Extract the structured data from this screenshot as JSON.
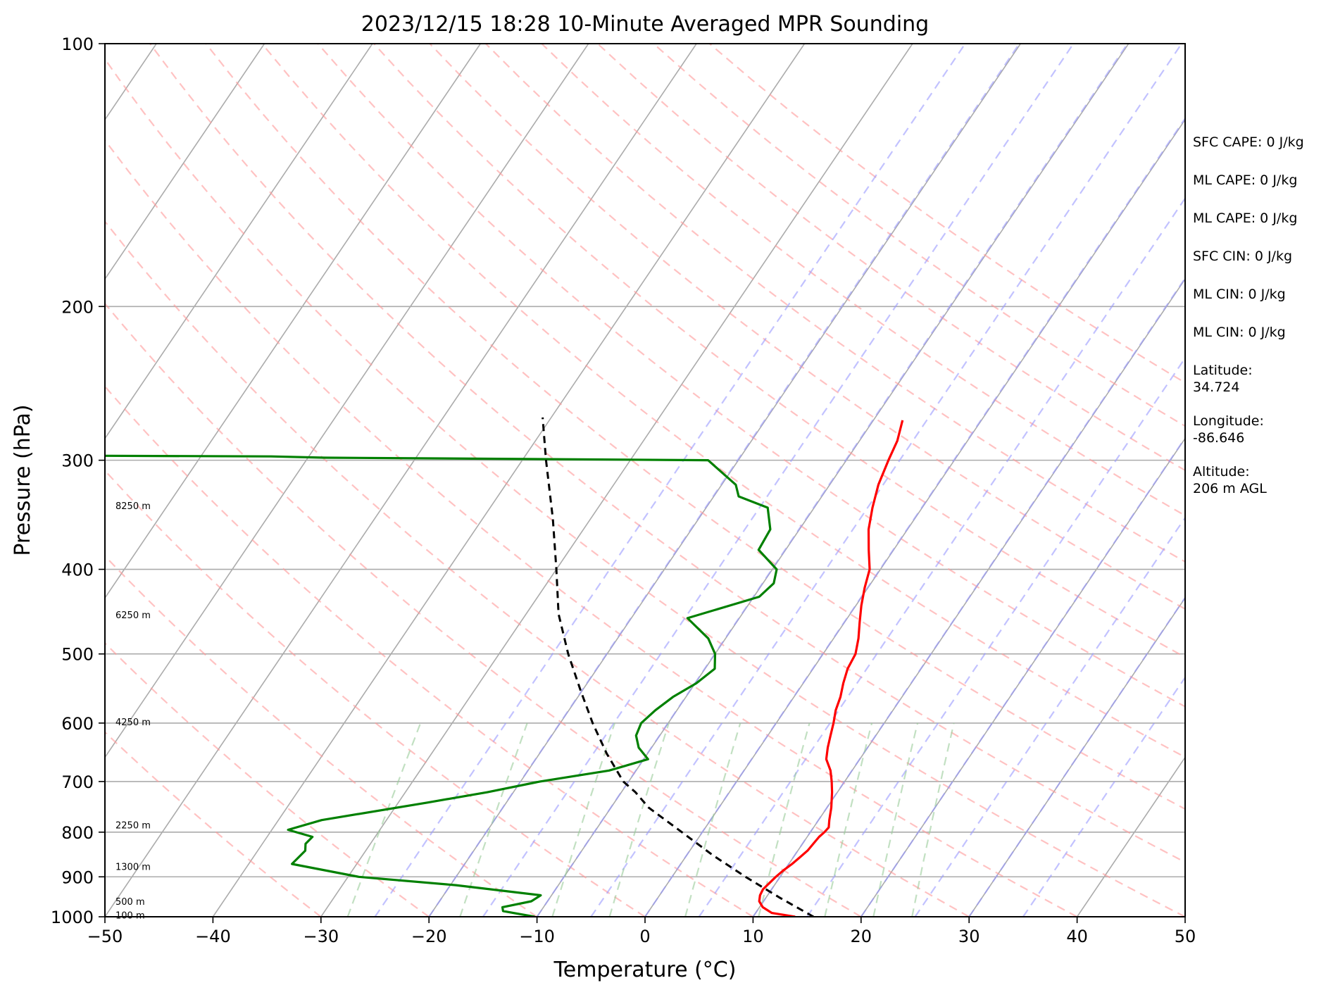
{
  "chart_data": {
    "type": "skew-t",
    "title": "2023/12/15 18:28 10-Minute Averaged MPR Sounding",
    "xlabel": "Temperature (°C)",
    "ylabel": "Pressure (hPa)",
    "xlim": [
      -50,
      50
    ],
    "ylim": [
      1000,
      100
    ],
    "y_scale": "log",
    "x_ticks": [
      "−50",
      "−40",
      "−30",
      "−20",
      "−10",
      "0",
      "10",
      "20",
      "30",
      "40",
      "50"
    ],
    "x_tick_values": [
      -50,
      -40,
      -30,
      -20,
      -10,
      0,
      10,
      20,
      30,
      40,
      50
    ],
    "y_ticks": [
      "1000",
      "900",
      "800",
      "700",
      "600",
      "500",
      "400",
      "300",
      "200",
      "100"
    ],
    "y_tick_values": [
      1000,
      900,
      800,
      700,
      600,
      500,
      400,
      300,
      200,
      100
    ],
    "grid": true,
    "series": [
      {
        "role": "temperature",
        "color": "#ff0000",
        "points": [
          [
            1000,
            13.9
          ],
          [
            990,
            11.5
          ],
          [
            975,
            10.3
          ],
          [
            960,
            9.6
          ],
          [
            945,
            9.3
          ],
          [
            930,
            9.2
          ],
          [
            915,
            9.4
          ],
          [
            900,
            9.6
          ],
          [
            885,
            9.9
          ],
          [
            870,
            10.3
          ],
          [
            855,
            10.6
          ],
          [
            840,
            10.9
          ],
          [
            825,
            11.0
          ],
          [
            810,
            11.1
          ],
          [
            800,
            11.3
          ],
          [
            790,
            11.4
          ],
          [
            775,
            11.0
          ],
          [
            750,
            10.4
          ],
          [
            720,
            9.5
          ],
          [
            700,
            8.8
          ],
          [
            680,
            8.0
          ],
          [
            660,
            6.9
          ],
          [
            640,
            6.3
          ],
          [
            620,
            5.8
          ],
          [
            600,
            5.3
          ],
          [
            580,
            4.7
          ],
          [
            560,
            4.3
          ],
          [
            540,
            3.7
          ],
          [
            520,
            3.2
          ],
          [
            500,
            3.0
          ],
          [
            480,
            2.3
          ],
          [
            460,
            1.4
          ],
          [
            440,
            0.5
          ],
          [
            420,
            -0.3
          ],
          [
            400,
            -1.0
          ],
          [
            380,
            -2.3
          ],
          [
            360,
            -3.6
          ],
          [
            340,
            -4.6
          ],
          [
            320,
            -5.5
          ],
          [
            300,
            -6.1
          ],
          [
            285,
            -6.5
          ],
          [
            270,
            -7.3
          ]
        ]
      },
      {
        "role": "dewpoint",
        "color": "#008000",
        "points": [
          [
            1000,
            -10.2
          ],
          [
            985,
            -13.5
          ],
          [
            975,
            -13.8
          ],
          [
            960,
            -11.5
          ],
          [
            945,
            -11.0
          ],
          [
            920,
            -19.5
          ],
          [
            900,
            -29.0
          ],
          [
            870,
            -36.0
          ],
          [
            840,
            -35.6
          ],
          [
            825,
            -36.0
          ],
          [
            810,
            -35.8
          ],
          [
            795,
            -38.5
          ],
          [
            775,
            -36.0
          ],
          [
            740,
            -27.3
          ],
          [
            720,
            -22.4
          ],
          [
            700,
            -18.2
          ],
          [
            680,
            -12.5
          ],
          [
            660,
            -9.6
          ],
          [
            640,
            -11.2
          ],
          [
            620,
            -12.2
          ],
          [
            600,
            -12.5
          ],
          [
            580,
            -12.0
          ],
          [
            560,
            -11.2
          ],
          [
            540,
            -9.9
          ],
          [
            520,
            -9.1
          ],
          [
            500,
            -10.0
          ],
          [
            480,
            -11.6
          ],
          [
            455,
            -14.8
          ],
          [
            430,
            -9.5
          ],
          [
            415,
            -9.0
          ],
          [
            400,
            -9.6
          ],
          [
            380,
            -12.5
          ],
          [
            360,
            -12.7
          ],
          [
            340,
            -14.3
          ],
          [
            330,
            -17.7
          ],
          [
            320,
            -18.7
          ],
          [
            300,
            -22.8
          ],
          [
            298,
            -58.5
          ],
          [
            297,
            -63.5
          ],
          [
            296,
            -95.0
          ]
        ]
      },
      {
        "role": "parcel",
        "color": "#000000",
        "style": "dashed",
        "points": [
          [
            1000,
            15.6
          ],
          [
            950,
            11.2
          ],
          [
            900,
            6.8
          ],
          [
            850,
            2.4
          ],
          [
            800,
            -1.9
          ],
          [
            750,
            -6.5
          ],
          [
            720,
            -8.7
          ],
          [
            700,
            -10.5
          ],
          [
            650,
            -13.8
          ],
          [
            600,
            -17.0
          ],
          [
            550,
            -20.2
          ],
          [
            500,
            -23.6
          ],
          [
            450,
            -27.0
          ],
          [
            400,
            -30.0
          ],
          [
            350,
            -33.5
          ],
          [
            300,
            -37.8
          ],
          [
            268,
            -40.8
          ]
        ]
      }
    ],
    "height_labels": [
      {
        "pressure": 995,
        "text": "100 m"
      },
      {
        "pressure": 960,
        "text": "500 m"
      },
      {
        "pressure": 876,
        "text": "1300 m"
      },
      {
        "pressure": 785,
        "text": "2250 m"
      },
      {
        "pressure": 598,
        "text": "4250 m"
      },
      {
        "pressure": 451,
        "text": "6250 m"
      },
      {
        "pressure": 338,
        "text": "8250 m"
      }
    ],
    "reference_lines": {
      "isobars": [
        1000,
        900,
        800,
        700,
        600,
        500,
        400,
        300,
        200,
        100
      ],
      "isotherms": [
        -150,
        -140,
        -130,
        -120,
        -110,
        -100,
        -90,
        -80,
        -70,
        -60,
        -50,
        -40,
        -30,
        -20,
        -10,
        0,
        10,
        20,
        30,
        40,
        50
      ],
      "dry_adiabats": [
        -30,
        -20,
        -10,
        0,
        10,
        20,
        30,
        40,
        50,
        60,
        70,
        80,
        90,
        100,
        110,
        120,
        130,
        140,
        150,
        160
      ],
      "moist_adiabats": [
        -25,
        -20,
        -15,
        -10,
        -5,
        0,
        5,
        10,
        15,
        20,
        25,
        30,
        35
      ],
      "mixing_ratio_lines": [
        0.4,
        1,
        2,
        3,
        5,
        8,
        12,
        16,
        20
      ]
    },
    "colors": {
      "isobar": "#ababab",
      "isotherm": "#ababab",
      "dry_adiabat": "#ff9999",
      "moist_adiabat": "#9999ff",
      "mixing_ratio": "#99cc99"
    }
  },
  "info_panel": {
    "items": [
      "SFC CAPE: 0 J/kg",
      "ML CAPE: 0 J/kg",
      "ML CAPE: 0 J/kg",
      "SFC CIN: 0 J/kg",
      "ML CIN: 0 J/kg",
      "ML CIN: 0 J/kg",
      "Latitude:\n34.724",
      "Longitude:\n-86.646",
      "Altitude:\n206 m AGL"
    ]
  }
}
